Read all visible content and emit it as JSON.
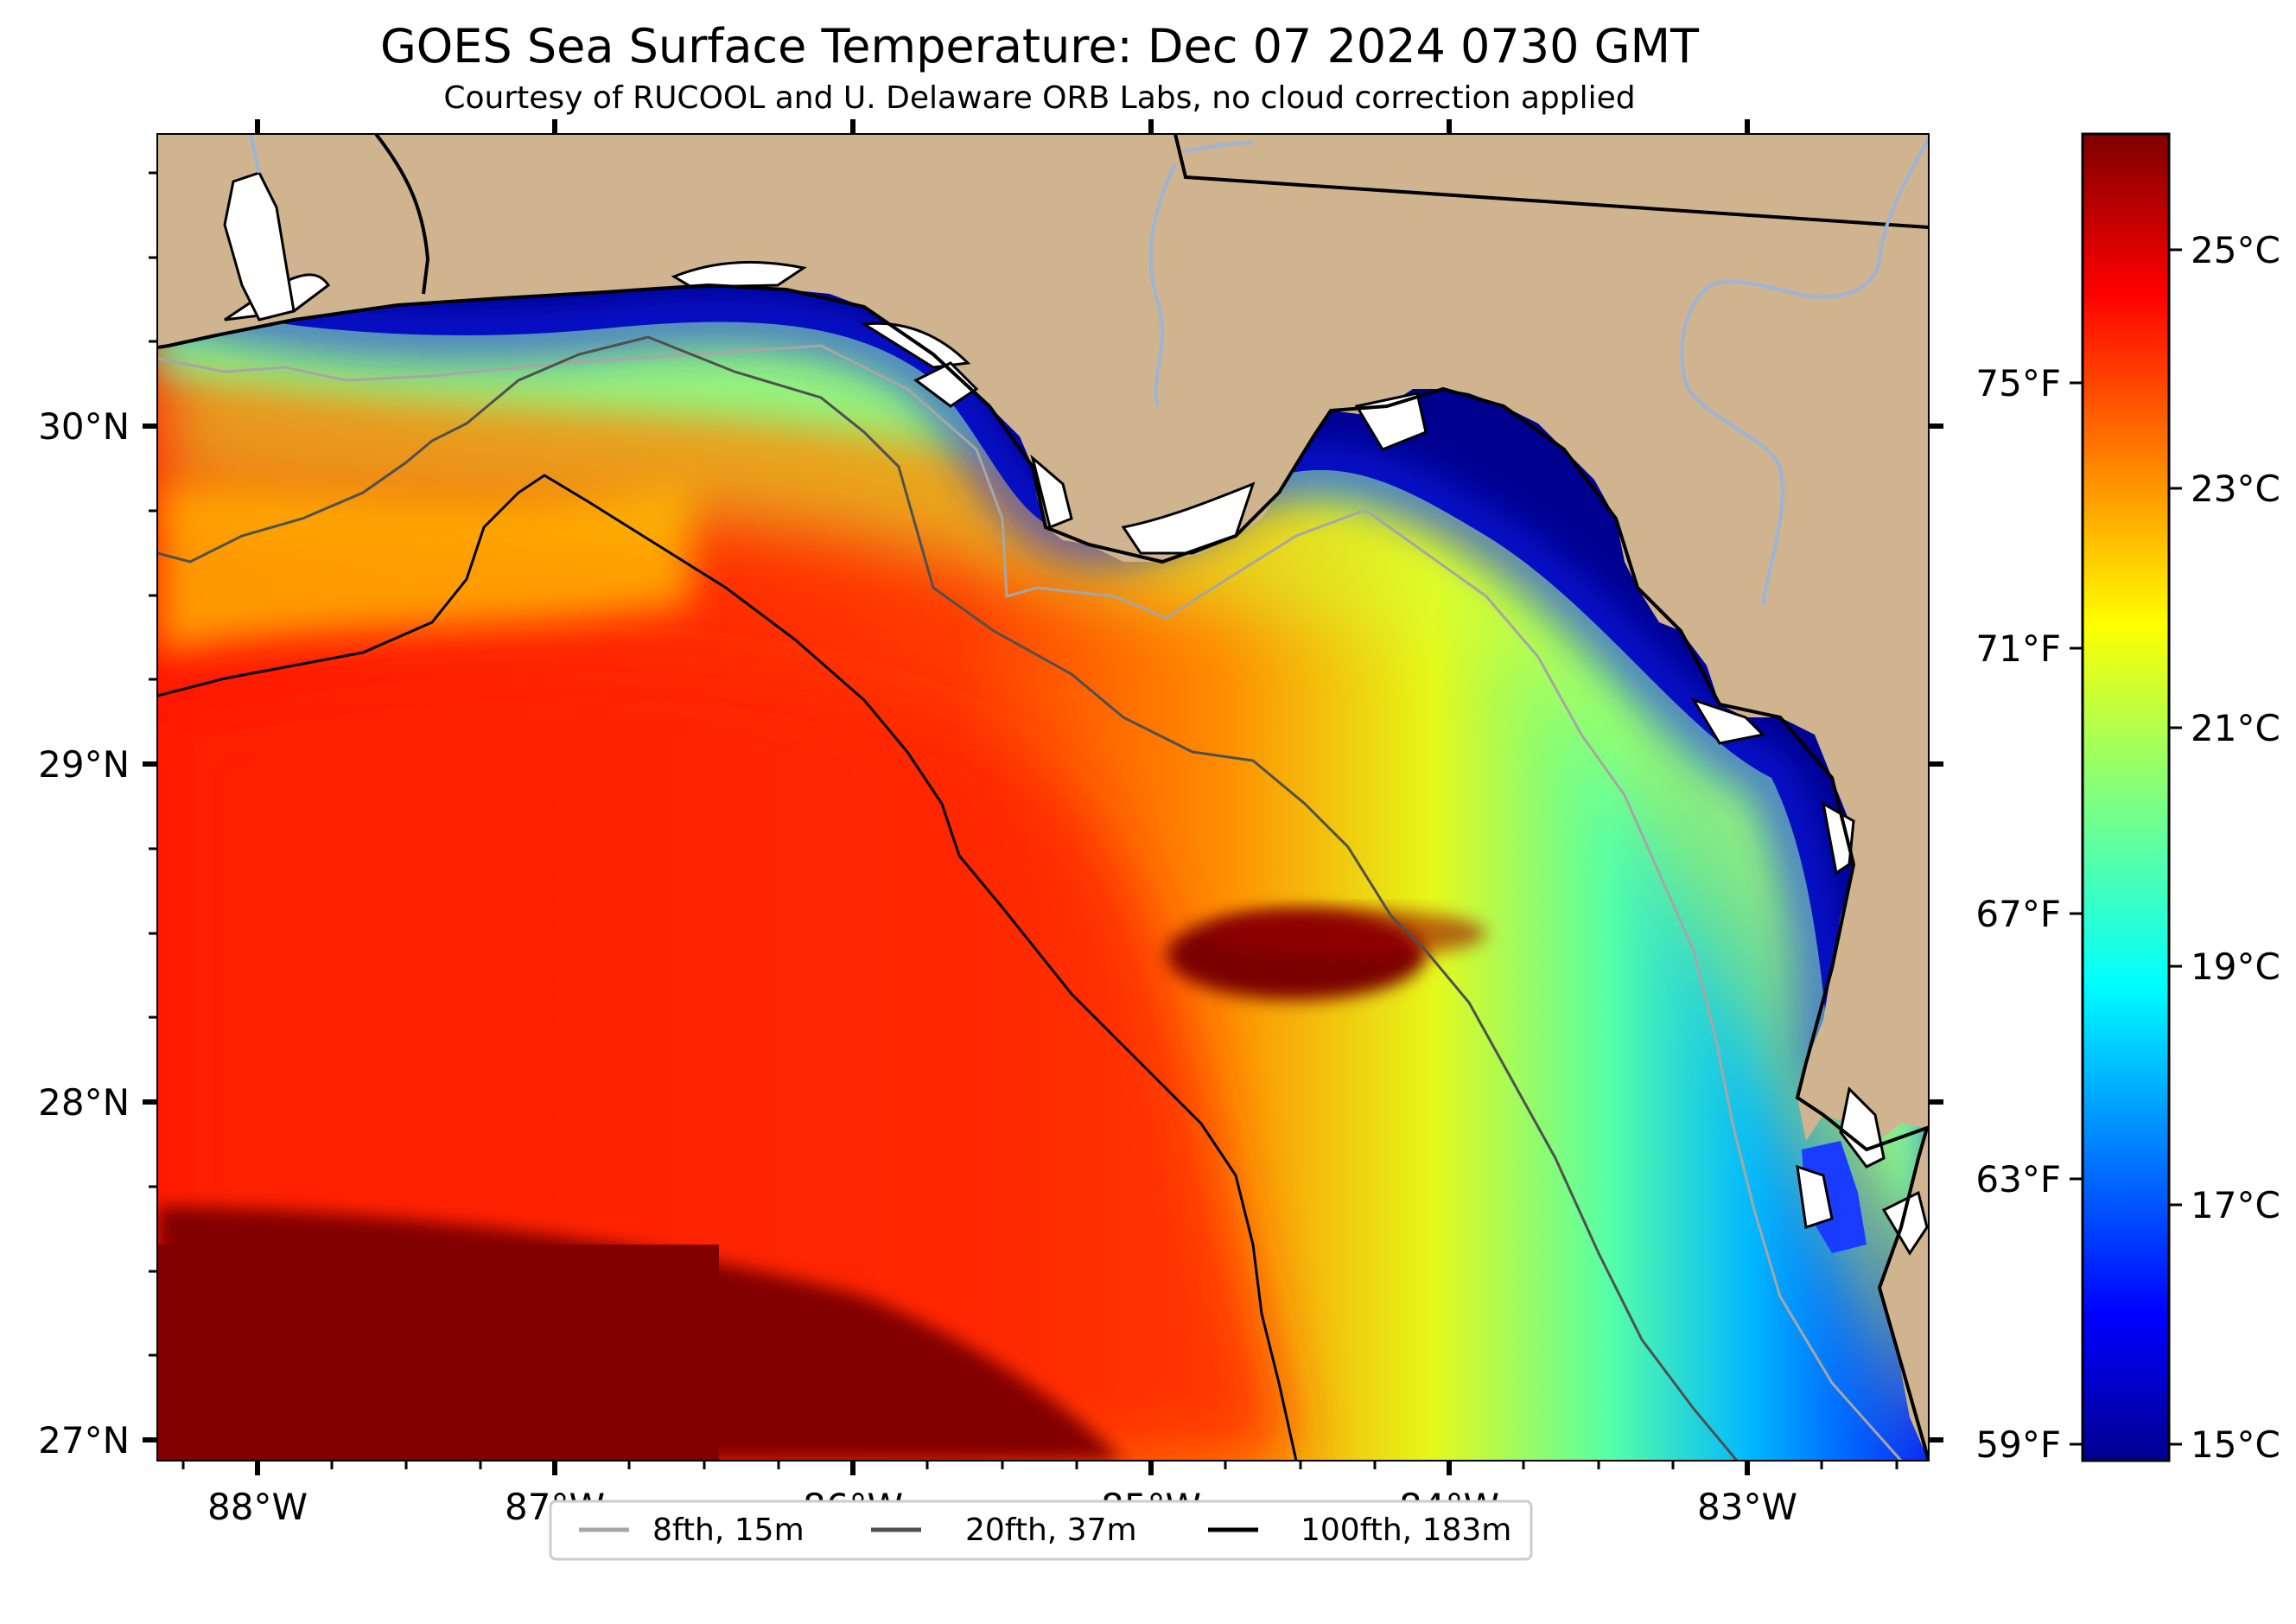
{
  "header": {
    "title": "GOES Sea Surface Temperature: Dec 07 2024 0730 GMT",
    "subtitle": "Courtesy of RUCOOL and U. Delaware ORB Labs, no cloud correction applied"
  },
  "map": {
    "lon_ticks": [
      "88°W",
      "87°W",
      "86°W",
      "85°W",
      "84°W",
      "83°W"
    ],
    "lat_ticks": [
      "30°N",
      "29°N",
      "28°N",
      "27°N"
    ],
    "fahrenheit_ticks": [
      "75°F",
      "71°F",
      "67°F",
      "63°F",
      "59°F"
    ],
    "colors": {
      "land": "#cfb48f",
      "coastline": "#000000",
      "river": "#9cb4d6",
      "cold": "#00008f",
      "warm": "#7f0000"
    }
  },
  "colorbar": {
    "ticks": [
      "25°C",
      "23°C",
      "21°C",
      "19°C",
      "17°C",
      "15°C"
    ],
    "colormap": "jet"
  },
  "legend": {
    "entries": [
      {
        "label": "8fth, 15m",
        "color": "#a6a6a6"
      },
      {
        "label": "20fth, 37m",
        "color": "#505050"
      },
      {
        "label": "100fth, 183m",
        "color": "#000000"
      }
    ]
  }
}
